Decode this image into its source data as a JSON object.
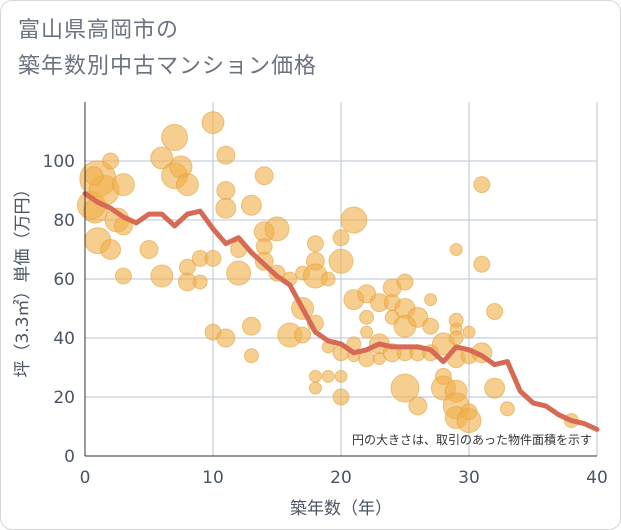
{
  "title_line1": "富山県高岡市の",
  "title_line2": "築年数別中古マンション価格",
  "chart_data": {
    "type": "scatter",
    "xlabel": "築年数（年）",
    "ylabel": "坪（3.3㎡）単価（万円）",
    "xlim": [
      0,
      40
    ],
    "ylim": [
      0,
      120
    ],
    "xticks": [
      "0",
      "10",
      "20",
      "30",
      "40"
    ],
    "yticks": [
      "0",
      "20",
      "40",
      "60",
      "80",
      "100"
    ],
    "grid": true,
    "annotation": "円の大きさは、取引のあった物件面積を示す",
    "colors": {
      "bubble": "#f0b04a",
      "line": "#d66a55",
      "grid": "#b9c6d6"
    },
    "line": {
      "x": [
        0,
        1,
        2,
        3,
        4,
        5,
        6,
        7,
        8,
        9,
        10,
        11,
        12,
        13,
        14,
        15,
        16,
        17,
        18,
        19,
        20,
        21,
        22,
        23,
        24,
        25,
        26,
        27,
        28,
        29,
        30,
        31,
        32,
        33,
        34,
        35,
        36,
        37,
        38,
        39,
        40
      ],
      "y": [
        89,
        86,
        84,
        81,
        79,
        82,
        82,
        78,
        82,
        83,
        77,
        72,
        74,
        69,
        65,
        61,
        58,
        50,
        42,
        39,
        38,
        35,
        36,
        38,
        37,
        37,
        37,
        36,
        32,
        37,
        36,
        34,
        31,
        32,
        22,
        18,
        17,
        14,
        12,
        11,
        9
      ]
    },
    "points": [
      {
        "x": 0.5,
        "y": 85,
        "s": 14
      },
      {
        "x": 1,
        "y": 94,
        "s": 18
      },
      {
        "x": 1,
        "y": 73,
        "s": 13
      },
      {
        "x": 0.8,
        "y": 83,
        "s": 12
      },
      {
        "x": 1.5,
        "y": 90,
        "s": 15
      },
      {
        "x": 2,
        "y": 100,
        "s": 8
      },
      {
        "x": 2,
        "y": 70,
        "s": 10
      },
      {
        "x": 2.5,
        "y": 80,
        "s": 12
      },
      {
        "x": 3,
        "y": 92,
        "s": 11
      },
      {
        "x": 3,
        "y": 78,
        "s": 9
      },
      {
        "x": 3,
        "y": 61,
        "s": 8
      },
      {
        "x": 0.7,
        "y": 95,
        "s": 9
      },
      {
        "x": 5,
        "y": 70,
        "s": 9
      },
      {
        "x": 6,
        "y": 101,
        "s": 11
      },
      {
        "x": 6,
        "y": 61,
        "s": 11
      },
      {
        "x": 7,
        "y": 108,
        "s": 13
      },
      {
        "x": 7,
        "y": 95,
        "s": 13
      },
      {
        "x": 7.5,
        "y": 98,
        "s": 11
      },
      {
        "x": 8,
        "y": 92,
        "s": 11
      },
      {
        "x": 8,
        "y": 64,
        "s": 8
      },
      {
        "x": 8,
        "y": 59,
        "s": 9
      },
      {
        "x": 9,
        "y": 67,
        "s": 8
      },
      {
        "x": 9,
        "y": 59,
        "s": 7
      },
      {
        "x": 10,
        "y": 113,
        "s": 11
      },
      {
        "x": 10,
        "y": 67,
        "s": 8
      },
      {
        "x": 10,
        "y": 42,
        "s": 8
      },
      {
        "x": 11,
        "y": 102,
        "s": 9
      },
      {
        "x": 11,
        "y": 90,
        "s": 9
      },
      {
        "x": 11,
        "y": 84,
        "s": 10
      },
      {
        "x": 11,
        "y": 40,
        "s": 9
      },
      {
        "x": 12,
        "y": 70,
        "s": 8
      },
      {
        "x": 12,
        "y": 62,
        "s": 12
      },
      {
        "x": 13,
        "y": 85,
        "s": 10
      },
      {
        "x": 13,
        "y": 44,
        "s": 9
      },
      {
        "x": 13,
        "y": 34,
        "s": 7
      },
      {
        "x": 14,
        "y": 95,
        "s": 9
      },
      {
        "x": 14,
        "y": 76,
        "s": 10
      },
      {
        "x": 14,
        "y": 71,
        "s": 8
      },
      {
        "x": 14,
        "y": 66,
        "s": 9
      },
      {
        "x": 15,
        "y": 77,
        "s": 12
      },
      {
        "x": 15,
        "y": 62,
        "s": 8
      },
      {
        "x": 16,
        "y": 60,
        "s": 7
      },
      {
        "x": 16,
        "y": 41,
        "s": 12
      },
      {
        "x": 17,
        "y": 62,
        "s": 7
      },
      {
        "x": 17,
        "y": 50,
        "s": 11
      },
      {
        "x": 17,
        "y": 41,
        "s": 8
      },
      {
        "x": 18,
        "y": 72,
        "s": 8
      },
      {
        "x": 18,
        "y": 66,
        "s": 9
      },
      {
        "x": 18,
        "y": 61,
        "s": 12
      },
      {
        "x": 18,
        "y": 45,
        "s": 8
      },
      {
        "x": 18,
        "y": 27,
        "s": 6
      },
      {
        "x": 18,
        "y": 23,
        "s": 6
      },
      {
        "x": 19,
        "y": 60,
        "s": 7
      },
      {
        "x": 19,
        "y": 37,
        "s": 6
      },
      {
        "x": 19,
        "y": 27,
        "s": 6
      },
      {
        "x": 20,
        "y": 74,
        "s": 8
      },
      {
        "x": 20,
        "y": 66,
        "s": 12
      },
      {
        "x": 20,
        "y": 35,
        "s": 8
      },
      {
        "x": 20,
        "y": 27,
        "s": 6
      },
      {
        "x": 20,
        "y": 20,
        "s": 8
      },
      {
        "x": 21,
        "y": 80,
        "s": 13
      },
      {
        "x": 21,
        "y": 53,
        "s": 10
      },
      {
        "x": 21,
        "y": 38,
        "s": 7
      },
      {
        "x": 21,
        "y": 34,
        "s": 6
      },
      {
        "x": 22,
        "y": 55,
        "s": 9
      },
      {
        "x": 22,
        "y": 47,
        "s": 7
      },
      {
        "x": 22,
        "y": 42,
        "s": 6
      },
      {
        "x": 22,
        "y": 33,
        "s": 8
      },
      {
        "x": 23,
        "y": 52,
        "s": 9
      },
      {
        "x": 23,
        "y": 38,
        "s": 10
      },
      {
        "x": 23,
        "y": 33,
        "s": 6
      },
      {
        "x": 24,
        "y": 57,
        "s": 9
      },
      {
        "x": 24,
        "y": 52,
        "s": 8
      },
      {
        "x": 24,
        "y": 47,
        "s": 7
      },
      {
        "x": 24,
        "y": 35,
        "s": 9
      },
      {
        "x": 25,
        "y": 59,
        "s": 8
      },
      {
        "x": 25,
        "y": 50,
        "s": 10
      },
      {
        "x": 25,
        "y": 44,
        "s": 11
      },
      {
        "x": 25,
        "y": 35,
        "s": 8
      },
      {
        "x": 25,
        "y": 23,
        "s": 14
      },
      {
        "x": 26,
        "y": 47,
        "s": 10
      },
      {
        "x": 26,
        "y": 35,
        "s": 8
      },
      {
        "x": 26,
        "y": 17,
        "s": 9
      },
      {
        "x": 27,
        "y": 53,
        "s": 6
      },
      {
        "x": 27,
        "y": 44,
        "s": 8
      },
      {
        "x": 27,
        "y": 35,
        "s": 8
      },
      {
        "x": 28,
        "y": 38,
        "s": 11
      },
      {
        "x": 28,
        "y": 27,
        "s": 8
      },
      {
        "x": 28,
        "y": 23,
        "s": 12
      },
      {
        "x": 29,
        "y": 70,
        "s": 6
      },
      {
        "x": 29,
        "y": 46,
        "s": 7
      },
      {
        "x": 29,
        "y": 43,
        "s": 6
      },
      {
        "x": 29,
        "y": 40,
        "s": 7
      },
      {
        "x": 29,
        "y": 33,
        "s": 9
      },
      {
        "x": 29,
        "y": 22,
        "s": 11
      },
      {
        "x": 29,
        "y": 17,
        "s": 13
      },
      {
        "x": 29,
        "y": 13,
        "s": 11
      },
      {
        "x": 30,
        "y": 42,
        "s": 6
      },
      {
        "x": 30,
        "y": 34,
        "s": 8
      },
      {
        "x": 30,
        "y": 15,
        "s": 8
      },
      {
        "x": 30,
        "y": 12,
        "s": 12
      },
      {
        "x": 31,
        "y": 92,
        "s": 8
      },
      {
        "x": 31,
        "y": 65,
        "s": 8
      },
      {
        "x": 31,
        "y": 35,
        "s": 10
      },
      {
        "x": 32,
        "y": 49,
        "s": 8
      },
      {
        "x": 32,
        "y": 23,
        "s": 10
      },
      {
        "x": 33,
        "y": 16,
        "s": 7
      },
      {
        "x": 38,
        "y": 12,
        "s": 7
      }
    ]
  }
}
